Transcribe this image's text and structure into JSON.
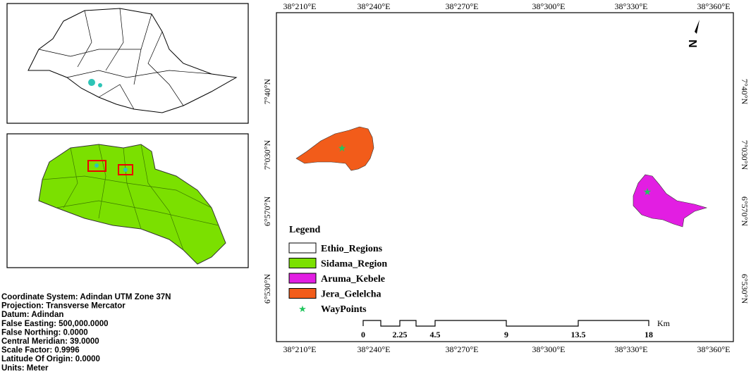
{
  "map": {
    "top_labels": [
      "38°210°E",
      "38°240°E",
      "38°270°E",
      "38°300°E",
      "38°330°E",
      "38°360°E"
    ],
    "bottom_labels": [
      "38°210°E",
      "38°240°E",
      "38°270°E",
      "38°300°E",
      "38°330°E",
      "38°360°E"
    ],
    "left_labels": [
      "7°40°N",
      "7°030°N",
      "6°570°N",
      "6°530°N"
    ],
    "right_labels": [
      "7°40°N",
      "7°030°N",
      "6°570°N",
      "6°530°N"
    ],
    "north": "N",
    "scale": {
      "labels": [
        "0",
        "2.25",
        "4.5",
        "9",
        "13.5",
        "18"
      ],
      "unit": "Km"
    },
    "legend": {
      "title": "Legend",
      "items": [
        "Ethio_Regions",
        "Sidama_Region",
        "Aruma_Kebele",
        "Jera_Gelelcha",
        "WayPoints"
      ]
    },
    "coordinate_info": [
      "Coordinate System: Adindan UTM Zone 37N",
      "Projection: Transverse Mercator",
      "Datum: Adindan",
      "False Easting: 500,000.0000",
      "False Northing: 0.0000",
      "Central Meridian: 39.0000",
      "Scale Factor: 0.9996",
      "Latitude Of Origin: 0.0000",
      "Units: Meter"
    ]
  }
}
